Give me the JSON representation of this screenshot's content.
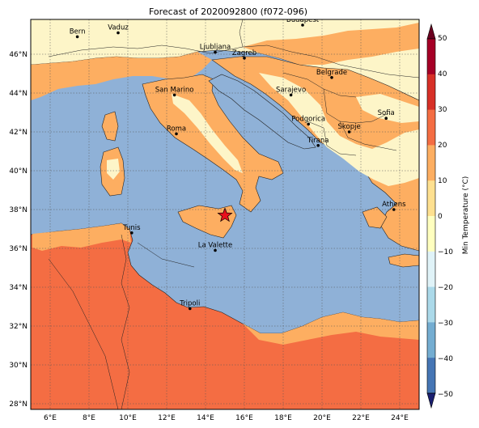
{
  "title": "Forecast of 2020092800 (f072-096)",
  "colorbar": {
    "label": "Min Temperature (°C)",
    "ticks": [
      "50",
      "40",
      "30",
      "20",
      "10",
      "0",
      "−10",
      "−20",
      "−30",
      "−40",
      "−50"
    ],
    "colors": [
      "#6b0020",
      "#a50026",
      "#d73027",
      "#f46d43",
      "#fdae61",
      "#fee090",
      "#ffffbf",
      "#e0f3f8",
      "#abd9e9",
      "#74add1",
      "#4575b4",
      "#313695",
      "#1a1f70"
    ]
  },
  "axes": {
    "lon_ticks": [
      "6°E",
      "8°E",
      "10°E",
      "12°E",
      "14°E",
      "16°E",
      "18°E",
      "20°E",
      "22°E",
      "24°E"
    ],
    "lat_ticks": [
      "46°N",
      "44°N",
      "42°N",
      "40°N",
      "38°N",
      "36°N",
      "34°N",
      "32°N",
      "30°N",
      "28°N"
    ]
  },
  "colors": {
    "sea": "#8fb1d7",
    "warm": "#f46d43",
    "mild": "#fdae61",
    "cool": "#fdf5c8"
  },
  "cities": [
    {
      "name": "Bern",
      "lon": 7.4,
      "lat": 46.9
    },
    {
      "name": "Vaduz",
      "lon": 9.5,
      "lat": 47.1
    },
    {
      "name": "Budapest",
      "lon": 19.0,
      "lat": 47.5
    },
    {
      "name": "Ljubljana",
      "lon": 14.5,
      "lat": 46.1
    },
    {
      "name": "Zagreb",
      "lon": 16.0,
      "lat": 45.8
    },
    {
      "name": "Belgrade",
      "lon": 20.5,
      "lat": 44.8
    },
    {
      "name": "San Marino",
      "lon": 12.4,
      "lat": 43.9
    },
    {
      "name": "Sarajevo",
      "lon": 18.4,
      "lat": 43.9
    },
    {
      "name": "Sofia",
      "lon": 23.3,
      "lat": 42.7
    },
    {
      "name": "Roma",
      "lon": 12.5,
      "lat": 41.9
    },
    {
      "name": "Podgorica",
      "lon": 19.3,
      "lat": 42.4
    },
    {
      "name": "Skopje",
      "lon": 21.4,
      "lat": 42.0
    },
    {
      "name": "Tirana",
      "lon": 19.8,
      "lat": 41.3
    },
    {
      "name": "Athens",
      "lon": 23.7,
      "lat": 38.0
    },
    {
      "name": "Tunis",
      "lon": 10.2,
      "lat": 36.8
    },
    {
      "name": "La Valette",
      "lon": 14.5,
      "lat": 35.9
    },
    {
      "name": "Tripoli",
      "lon": 13.2,
      "lat": 32.9
    }
  ],
  "marker": {
    "lon": 15.0,
    "lat": 37.7,
    "color": "#e8101c"
  }
}
